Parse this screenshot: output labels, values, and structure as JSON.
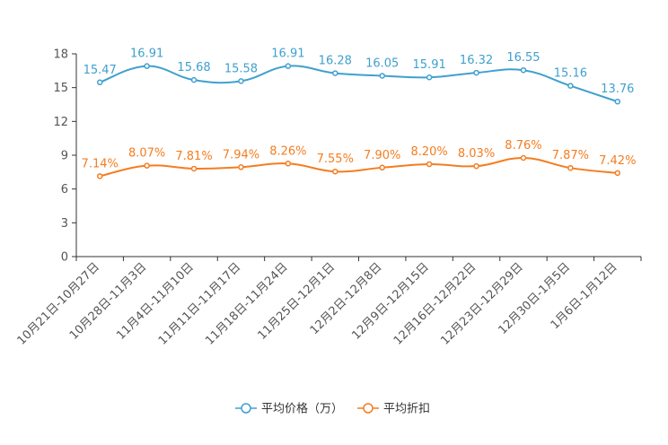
{
  "chart_data": {
    "type": "line",
    "categories": [
      "10月21日-10月27日",
      "10月28日-11月3日",
      "11月4日-11月10日",
      "11月11日-11月17日",
      "11月18日-11月24日",
      "11月25日-12月1日",
      "12月2日-12月8日",
      "12月9日-12月15日",
      "12月16日-12月22日",
      "12月23日-12月29日",
      "12月30日-1月5日",
      "1月6日-1月12日"
    ],
    "ylim": [
      0,
      18
    ],
    "yticks": [
      0,
      3,
      6,
      9,
      12,
      15,
      18
    ],
    "grid": false,
    "legend_position": "bottom-center",
    "series": [
      {
        "name": "平均价格（万）",
        "color": "#3fa0cf",
        "values": [
          15.47,
          16.91,
          15.68,
          15.58,
          16.91,
          16.28,
          16.05,
          15.91,
          16.32,
          16.55,
          15.16,
          13.76
        ],
        "labels": [
          "15.47",
          "16.91",
          "15.68",
          "15.58",
          "16.91",
          "16.28",
          "16.05",
          "15.91",
          "16.32",
          "16.55",
          "15.16",
          "13.76"
        ]
      },
      {
        "name": "平均折扣",
        "color": "#f47d20",
        "values": [
          7.14,
          8.07,
          7.81,
          7.94,
          8.26,
          7.55,
          7.9,
          8.2,
          8.03,
          8.76,
          7.87,
          7.42
        ],
        "labels": [
          "7.14%",
          "8.07%",
          "7.81%",
          "7.94%",
          "8.26%",
          "7.55%",
          "7.90%",
          "8.20%",
          "8.03%",
          "8.76%",
          "7.87%",
          "7.42%"
        ]
      }
    ]
  }
}
